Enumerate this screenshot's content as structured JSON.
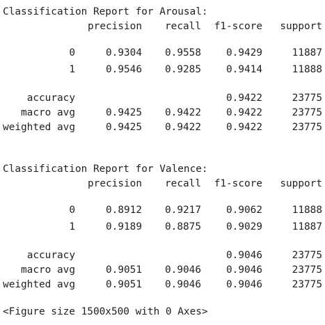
{
  "reports": [
    {
      "title": "Classification Report for Arousal:",
      "header": [
        "precision",
        "recall",
        "f1-score",
        "support"
      ],
      "rows": [
        [
          "0",
          "0.9304",
          "0.9558",
          "0.9429",
          "11887"
        ],
        [
          "1",
          "0.9546",
          "0.9285",
          "0.9414",
          "11888"
        ],
        [
          "accuracy",
          null,
          null,
          "0.9422",
          "23775"
        ],
        [
          "macro avg",
          "0.9425",
          "0.9422",
          "0.9422",
          "23775"
        ],
        [
          "weighted avg",
          "0.9425",
          "0.9422",
          "0.9422",
          "23775"
        ]
      ]
    },
    {
      "title": "Classification Report for Valence:",
      "header": [
        "precision",
        "recall",
        "f1-score",
        "support"
      ],
      "rows": [
        [
          "0",
          "0.8912",
          "0.9217",
          "0.9062",
          "11888"
        ],
        [
          "1",
          "0.9189",
          "0.8875",
          "0.9029",
          "11887"
        ],
        [
          "accuracy",
          null,
          null,
          "0.9046",
          "23775"
        ],
        [
          "macro avg",
          "0.9051",
          "0.9046",
          "0.9046",
          "23775"
        ],
        [
          "weighted avg",
          "0.9051",
          "0.9046",
          "0.9046",
          "23775"
        ]
      ]
    }
  ],
  "footer": "<Figure size 1500x500 with 0 Axes>"
}
